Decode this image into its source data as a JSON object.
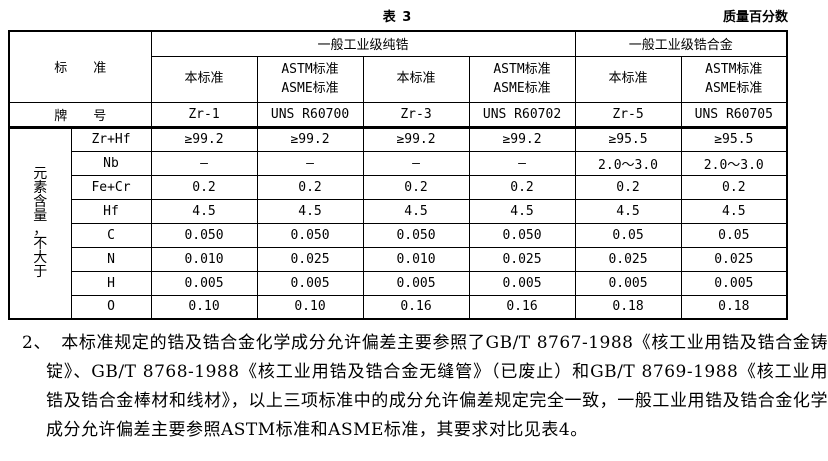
{
  "page": {
    "table_caption": "表 3",
    "unit_note": "质量百分数"
  },
  "table": {
    "header": {
      "standard_label": "标　　准",
      "groups": [
        {
          "label": "一般工业级纯锆"
        },
        {
          "label": "一般工业级锆合金"
        }
      ],
      "sub_columns": [
        "本标准",
        "ASTM标准\nASME标准",
        "本标准",
        "ASTM标准\nASME标准",
        "本标准",
        "ASTM标准\nASME标准"
      ],
      "grade_label": "牌　　号",
      "grades": [
        "Zr-1",
        "UNS R60700",
        "Zr-3",
        "UNS R60702",
        "Zr-5",
        "UNS R60705"
      ]
    },
    "row_group_label": "元素含量，不大于",
    "rows": [
      {
        "element": "Zr+Hf",
        "values": [
          "≥99.2",
          "≥99.2",
          "≥99.2",
          "≥99.2",
          "≥95.5",
          "≥95.5"
        ]
      },
      {
        "element": "Nb",
        "values": [
          "—",
          "—",
          "—",
          "—",
          "2.0～3.0",
          "2.0～3.0"
        ]
      },
      {
        "element": "Fe+Cr",
        "values": [
          "0.2",
          "0.2",
          "0.2",
          "0.2",
          "0.2",
          "0.2"
        ]
      },
      {
        "element": "Hf",
        "values": [
          "4.5",
          "4.5",
          "4.5",
          "4.5",
          "4.5",
          "4.5"
        ]
      },
      {
        "element": "C",
        "values": [
          "0.050",
          "0.050",
          "0.050",
          "0.050",
          "0.05",
          "0.05"
        ]
      },
      {
        "element": "N",
        "values": [
          "0.010",
          "0.025",
          "0.010",
          "0.025",
          "0.025",
          "0.025"
        ]
      },
      {
        "element": "H",
        "values": [
          "0.005",
          "0.005",
          "0.005",
          "0.005",
          "0.005",
          "0.005"
        ]
      },
      {
        "element": "O",
        "values": [
          "0.10",
          "0.10",
          "0.16",
          "0.16",
          "0.18",
          "0.18"
        ]
      }
    ]
  },
  "note": {
    "number": "2、",
    "text": "本标准规定的锆及锆合金化学成分允许偏差主要参照了GB/T 8767-1988《核工业用锆及锆合金铸锭》、GB/T 8768-1988《核工业用锆及锆合金无缝管》（已废止）和GB/T 8769-1988《核工业用锆及锆合金棒材和线材》，以上三项标准中的成分允许偏差规定完全一致，一般工业用锆及锆合金化学成分允许偏差主要参照ASTM标准和ASME标准，其要求对比见表4。"
  }
}
